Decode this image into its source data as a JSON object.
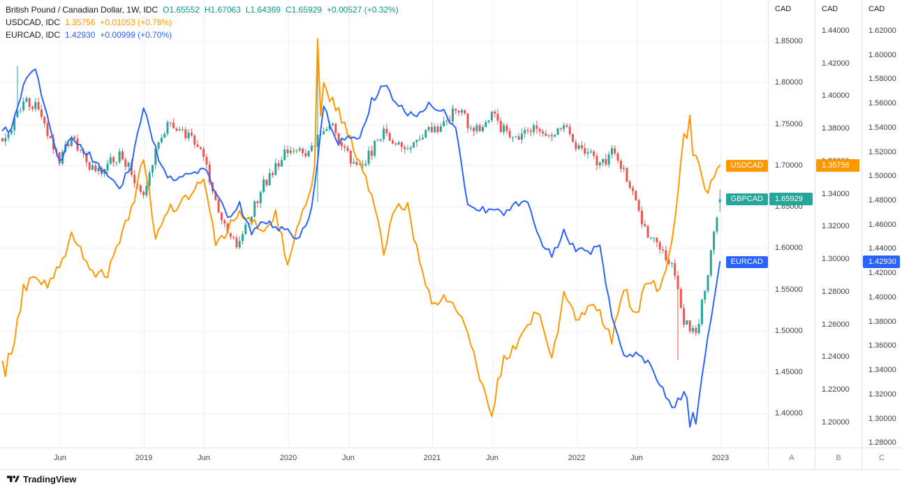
{
  "legend": {
    "rows": [
      {
        "title": "British Pound / Canadian Dollar, 1W, IDC",
        "values": [
          "O1.65552",
          "H1.67063",
          "L1.64369",
          "C1.65929",
          "+0.00527 (+0.32%)"
        ]
      },
      {
        "title": "USDCAD, IDC",
        "values": [
          "1.35756",
          "+0.01053 (+0.78%)"
        ]
      },
      {
        "title": "EURCAD, IDC",
        "values": [
          "1.42930",
          "+0.00999 (+0.70%)"
        ]
      }
    ]
  },
  "price_tags": [
    {
      "name": "USDCAD",
      "value": "1.35756",
      "price": 1.35756,
      "scale": 1,
      "bg": "#ff9800"
    },
    {
      "name": "GBPCAD",
      "value": "1.65929",
      "price": 1.65929,
      "scale": 0,
      "bg": "#26a69a"
    },
    {
      "name": "EURCAD",
      "value": "1.42930",
      "price": 1.4293,
      "scale": 2,
      "bg": "#2962ff"
    }
  ],
  "footer": {
    "logo_text": "TradingView"
  },
  "colors": {
    "candle_up": "#26a69a",
    "candle_down": "#ef5350",
    "usdcad": "#ff9800",
    "eurcad": "#2962ff",
    "green_text": "#089981",
    "grid": "#eef1f6"
  },
  "chart_data": {
    "type": "mixed",
    "title": "British Pound / Canadian Dollar, 1W, IDC vs USDCAD and EURCAD",
    "interval": "1W",
    "x_range": [
      "2018-01",
      "2023-01"
    ],
    "x_ticks": [
      {
        "label": "Jun",
        "month": 5
      },
      {
        "label": "2019",
        "month": 12
      },
      {
        "label": "Jun",
        "month": 17
      },
      {
        "label": "2020",
        "month": 24
      },
      {
        "label": "Jun",
        "month": 29
      },
      {
        "label": "2021",
        "month": 36
      },
      {
        "label": "Jun",
        "month": 41
      },
      {
        "label": "2022",
        "month": 48
      },
      {
        "label": "Jun",
        "month": 53
      },
      {
        "label": "2023",
        "month": 60
      }
    ],
    "scales": [
      {
        "id": "A",
        "label": "CAD",
        "letter": "A",
        "top": 1.9,
        "bottom": 1.359,
        "tick_start": 1.85,
        "tick_step": 0.05,
        "tick_count": 10
      },
      {
        "id": "B",
        "label": "CAD",
        "letter": "B",
        "top": 1.4588,
        "bottom": 1.1845,
        "tick_start": 1.44,
        "tick_step": 0.02,
        "tick_count": 13
      },
      {
        "id": "C",
        "label": "CAD",
        "letter": "C",
        "top": 1.6453,
        "bottom": 1.2761,
        "tick_start": 1.62,
        "tick_step": 0.02,
        "tick_count": 18
      }
    ],
    "series": [
      {
        "name": "GBPCAD",
        "type": "candlestick",
        "scale": "A",
        "monthly_closes": [
          1.745,
          1.778,
          1.772,
          1.742,
          1.708,
          1.732,
          1.712,
          1.688,
          1.702,
          1.712,
          1.692,
          1.664,
          1.722,
          1.752,
          1.748,
          1.73,
          1.712,
          1.652,
          1.622,
          1.602,
          1.642,
          1.678,
          1.698,
          1.718,
          1.714,
          1.718,
          1.748,
          1.742,
          1.712,
          1.698,
          1.716,
          1.744,
          1.728,
          1.722,
          1.738,
          1.744,
          1.748,
          1.768,
          1.752,
          1.742,
          1.762,
          1.742,
          1.732,
          1.742,
          1.744,
          1.736,
          1.752,
          1.722,
          1.714,
          1.7,
          1.716,
          1.698,
          1.652,
          1.618,
          1.598,
          1.584,
          1.512,
          1.496,
          1.568,
          1.659
        ],
        "spikes": [
          {
            "month": 1,
            "high": 1.82
          },
          {
            "month": 26,
            "high": 1.845,
            "low": 1.656
          },
          {
            "month": 56,
            "low": 1.465
          }
        ],
        "last_candle": {
          "o": 1.65552,
          "h": 1.67063,
          "l": 1.64369,
          "c": 1.65929
        }
      },
      {
        "name": "USDCAD",
        "type": "line",
        "scale": "B",
        "color": "#ff9800",
        "monthly_closes": [
          1.24,
          1.282,
          1.29,
          1.284,
          1.296,
          1.314,
          1.302,
          1.29,
          1.292,
          1.312,
          1.33,
          1.362,
          1.314,
          1.33,
          1.334,
          1.338,
          1.352,
          1.308,
          1.318,
          1.33,
          1.324,
          1.316,
          1.328,
          1.298,
          1.322,
          1.342,
          1.406,
          1.394,
          1.378,
          1.358,
          1.34,
          1.304,
          1.332,
          1.332,
          1.298,
          1.272,
          1.278,
          1.272,
          1.256,
          1.228,
          1.206,
          1.24,
          1.246,
          1.262,
          1.268,
          1.238,
          1.278,
          1.264,
          1.27,
          1.268,
          1.25,
          1.284,
          1.264,
          1.288,
          1.28,
          1.31,
          1.374,
          1.362,
          1.34,
          1.358
        ],
        "spikes": [
          {
            "month": 0,
            "value": 1.228
          },
          {
            "month": 26,
            "value": 1.435
          },
          {
            "month": 57,
            "value": 1.388
          }
        ],
        "last_value": 1.35756
      },
      {
        "name": "EURCAD",
        "type": "line",
        "scale": "C",
        "color": "#2962ff",
        "monthly_closes": [
          1.538,
          1.576,
          1.588,
          1.548,
          1.512,
          1.532,
          1.522,
          1.512,
          1.5,
          1.49,
          1.51,
          1.558,
          1.522,
          1.498,
          1.498,
          1.502,
          1.508,
          1.488,
          1.466,
          1.476,
          1.452,
          1.464,
          1.458,
          1.454,
          1.448,
          1.472,
          1.558,
          1.528,
          1.53,
          1.532,
          1.562,
          1.576,
          1.562,
          1.55,
          1.552,
          1.56,
          1.552,
          1.54,
          1.478,
          1.472,
          1.472,
          1.47,
          1.478,
          1.478,
          1.448,
          1.434,
          1.454,
          1.438,
          1.438,
          1.44,
          1.384,
          1.352,
          1.354,
          1.346,
          1.33,
          1.308,
          1.32,
          1.298,
          1.366,
          1.429
        ],
        "spikes": [
          {
            "month": 57,
            "value": 1.293
          }
        ],
        "last_value": 1.4293
      }
    ]
  }
}
